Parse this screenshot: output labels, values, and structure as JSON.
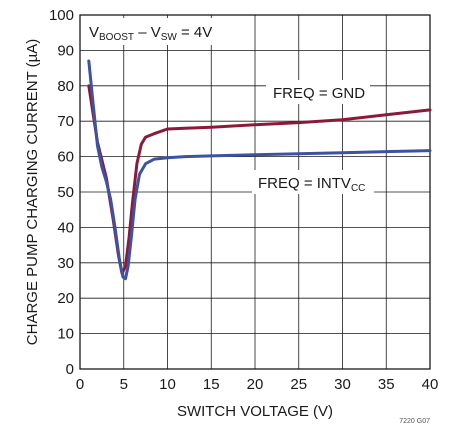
{
  "chart_data": {
    "type": "line",
    "xlabel": "SWITCH VOLTAGE (V)",
    "ylabel": "CHARGE PUMP CHARGING CURRENT (µA)",
    "xlim": [
      0,
      40
    ],
    "ylim": [
      0,
      100
    ],
    "x_ticks": [
      "0",
      "5",
      "10",
      "15",
      "20",
      "25",
      "30",
      "35",
      "40"
    ],
    "y_ticks": [
      "0",
      "10",
      "20",
      "30",
      "40",
      "50",
      "60",
      "70",
      "80",
      "90",
      "100"
    ],
    "grid": true,
    "condition": {
      "prefix": "V",
      "sub1": "BOOST",
      "middle": " – V",
      "sub2": "SW",
      "suffix": " = 4V"
    },
    "series": [
      {
        "name": "FREQ = GND",
        "label_main": "FREQ = GND",
        "label_sub": "",
        "color": "#8b1a3a",
        "points": [
          [
            1,
            80
          ],
          [
            2,
            64
          ],
          [
            3,
            54
          ],
          [
            3.8,
            42
          ],
          [
            4.4,
            32
          ],
          [
            4.8,
            27
          ],
          [
            5.2,
            29
          ],
          [
            5.6,
            37
          ],
          [
            6,
            47
          ],
          [
            6.5,
            58
          ],
          [
            7,
            63.5
          ],
          [
            7.5,
            65.5
          ],
          [
            8.5,
            66.5
          ],
          [
            10,
            67.8
          ],
          [
            12,
            68
          ],
          [
            15,
            68.3
          ],
          [
            20,
            69
          ],
          [
            25,
            69.6
          ],
          [
            30,
            70.4
          ],
          [
            35,
            71.8
          ],
          [
            40,
            73.2
          ]
        ]
      },
      {
        "name": "FREQ = INTVCC",
        "label_main": "FREQ = INTV",
        "label_sub": "CC",
        "color": "#3d52a0",
        "points": [
          [
            1,
            87
          ],
          [
            1.5,
            75
          ],
          [
            2,
            63
          ],
          [
            2.5,
            57
          ],
          [
            3,
            53
          ],
          [
            3.5,
            48
          ],
          [
            4,
            40
          ],
          [
            4.5,
            31
          ],
          [
            4.9,
            26
          ],
          [
            5.2,
            25.5
          ],
          [
            5.5,
            29
          ],
          [
            5.9,
            38
          ],
          [
            6.3,
            48
          ],
          [
            6.8,
            55
          ],
          [
            7.5,
            58
          ],
          [
            8.5,
            59.3
          ],
          [
            10,
            59.7
          ],
          [
            12,
            60
          ],
          [
            15,
            60.2
          ],
          [
            20,
            60.5
          ],
          [
            25,
            60.8
          ],
          [
            30,
            61.1
          ],
          [
            35,
            61.4
          ],
          [
            40,
            61.7
          ]
        ]
      }
    ],
    "figure_code": "7220 G07"
  }
}
